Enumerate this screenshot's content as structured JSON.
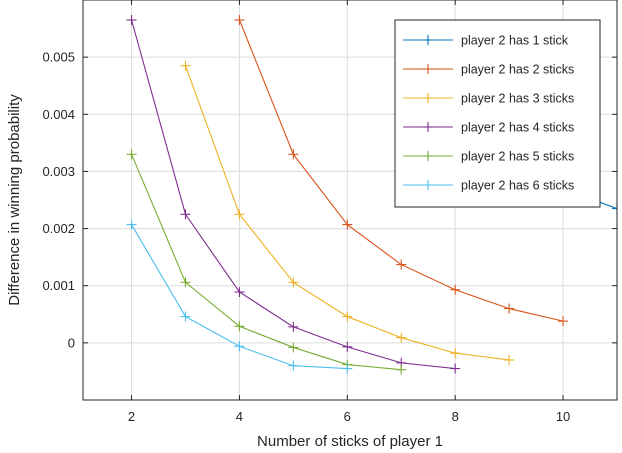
{
  "chart_data": {
    "type": "line",
    "xlabel": "Number of sticks of player 1",
    "ylabel": "Difference in winning probability",
    "xlim": [
      1.1,
      11
    ],
    "ylim": [
      -0.001,
      0.006
    ],
    "xticks": [
      2,
      4,
      6,
      8,
      10
    ],
    "xtick_labels": [
      "2",
      "4",
      "6",
      "8",
      "10"
    ],
    "yticks": [
      0,
      0.001,
      0.002,
      0.003,
      0.004,
      0.005
    ],
    "ytick_labels": [
      "0",
      "0.001",
      "0.002",
      "0.003",
      "0.004",
      "0.005"
    ],
    "grid": true,
    "legend_position": "top-right",
    "marker": "+",
    "series": [
      {
        "name": "player 2 has 1 stick",
        "color": "#0072BD",
        "x": [
          10,
          11
        ],
        "y": [
          0.0027,
          0.00235
        ]
      },
      {
        "name": "player 2 has 2 sticks",
        "color": "#D95319",
        "x": [
          4,
          5,
          6,
          7,
          8,
          9,
          10
        ],
        "y": [
          0.00565,
          0.0033,
          0.00207,
          0.00137,
          0.00093,
          0.0006,
          0.00038
        ]
      },
      {
        "name": "player 2 has 3 sticks",
        "color": "#EDB120",
        "x": [
          3,
          4,
          5,
          6,
          7,
          8,
          9
        ],
        "y": [
          0.00485,
          0.00225,
          0.00106,
          0.00046,
          9e-05,
          -0.00018,
          -0.0003
        ]
      },
      {
        "name": "player 2 has 4 sticks",
        "color": "#7E2F8E",
        "x": [
          2,
          3,
          4,
          5,
          6,
          7,
          8
        ],
        "y": [
          0.00565,
          0.00225,
          0.00089,
          0.00028,
          -7e-05,
          -0.00035,
          -0.00045
        ]
      },
      {
        "name": "player 2 has 5 sticks",
        "color": "#77AC30",
        "x": [
          2,
          3,
          4,
          5,
          6,
          7
        ],
        "y": [
          0.0033,
          0.00106,
          0.00029,
          -8e-05,
          -0.00038,
          -0.00047
        ]
      },
      {
        "name": "player 2 has 6 sticks",
        "color": "#4DBEEE",
        "x": [
          2,
          3,
          4,
          5,
          6
        ],
        "y": [
          0.00207,
          0.00046,
          -6e-05,
          -0.0004,
          -0.00045
        ]
      }
    ]
  }
}
